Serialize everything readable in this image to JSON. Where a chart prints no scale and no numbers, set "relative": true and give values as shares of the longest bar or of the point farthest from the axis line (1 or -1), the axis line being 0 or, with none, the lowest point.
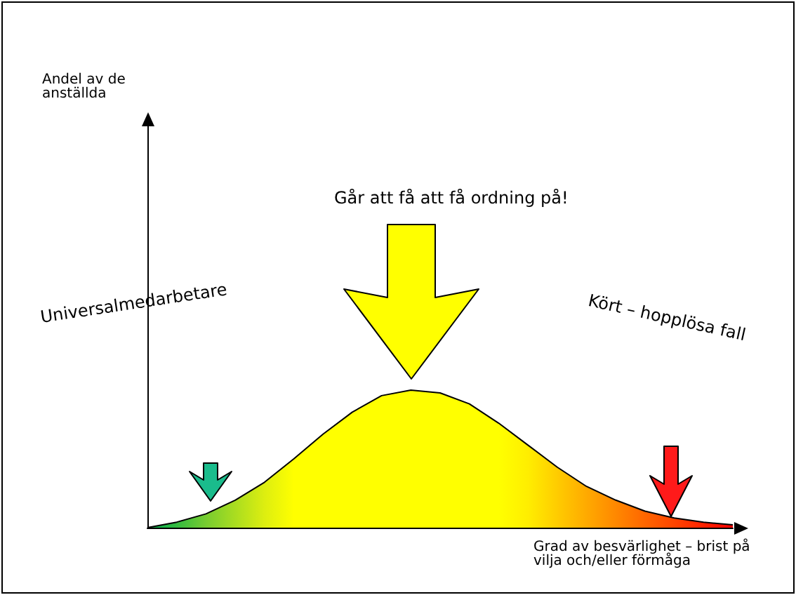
{
  "chart_data": {
    "type": "area",
    "relative": true,
    "xlabel": "Grad av besvärlighet – brist på vilja och/eller förmåga",
    "categories": [
      null,
      null,
      null,
      null,
      null,
      null,
      null,
      null,
      null,
      null,
      null,
      null,
      null,
      null,
      null,
      null,
      null,
      null,
      null,
      null,
      null
    ],
    "series": [
      {
        "color": "#000000",
        "colors": [
          "#00b050",
          "#33bb40",
          "#77cc30",
          "#aadd20",
          "#ddee10",
          "#ffff00",
          "#ffff00",
          "#ffff00",
          "#ffff00",
          "#ffff00",
          "#ffff00",
          "#ffff00",
          "#ffff00",
          "#ffee00",
          "#ffcc00",
          "#ffaa00",
          "#ff8800",
          "#ff6600",
          "#ff4400",
          "#ff2200",
          "#ff0000"
        ],
        "values": [
          0,
          0.04,
          0.1,
          0.2,
          0.33,
          0.5,
          0.68,
          0.84,
          0.96,
          1,
          0.98,
          0.9,
          0.76,
          0.6,
          0.44,
          0.3,
          0.2,
          0.12,
          0.07,
          0.04,
          0.02
        ]
      }
    ],
    "annotations": [
      "Går att få att få ordning på!",
      "Universalmedarbetare",
      "Kört – hopplösa fall",
      "Andel av de anställda"
    ],
    "grid": false
  }
}
